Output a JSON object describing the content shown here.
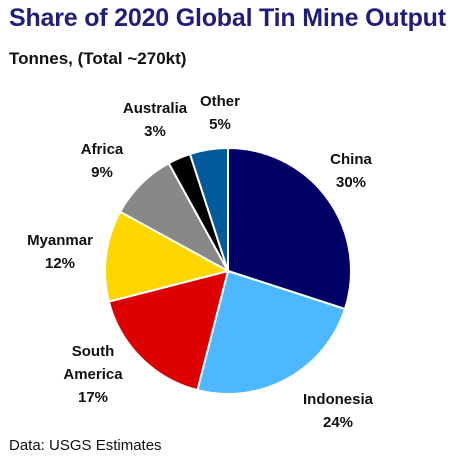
{
  "chart_data": {
    "type": "pie",
    "title": "Share of 2020 Global Tin Mine Output",
    "subtitle": "Tonnes, (Total ~270kt)",
    "source": "Data: USGS Estimates",
    "slices": [
      {
        "label": "China",
        "value": 30,
        "value_label": "30%",
        "color": "#000066"
      },
      {
        "label": "Indonesia",
        "value": 24,
        "value_label": "24%",
        "color": "#4DB8FF"
      },
      {
        "label": "South America",
        "label_lines": [
          "South",
          "America"
        ],
        "value": 17,
        "value_label": "17%",
        "color": "#DD0000"
      },
      {
        "label": "Myanmar",
        "value": 12,
        "value_label": "12%",
        "color": "#FFD700"
      },
      {
        "label": "Africa",
        "value": 9,
        "value_label": "9%",
        "color": "#888888"
      },
      {
        "label": "Australia",
        "value": 3,
        "value_label": "3%",
        "color": "#000000"
      },
      {
        "label": "Other",
        "value": 5,
        "value_label": "5%",
        "color": "#005A9C"
      }
    ],
    "start_angle": "12 o'clock",
    "direction": "clockwise",
    "legend": "none (direct labels)"
  }
}
